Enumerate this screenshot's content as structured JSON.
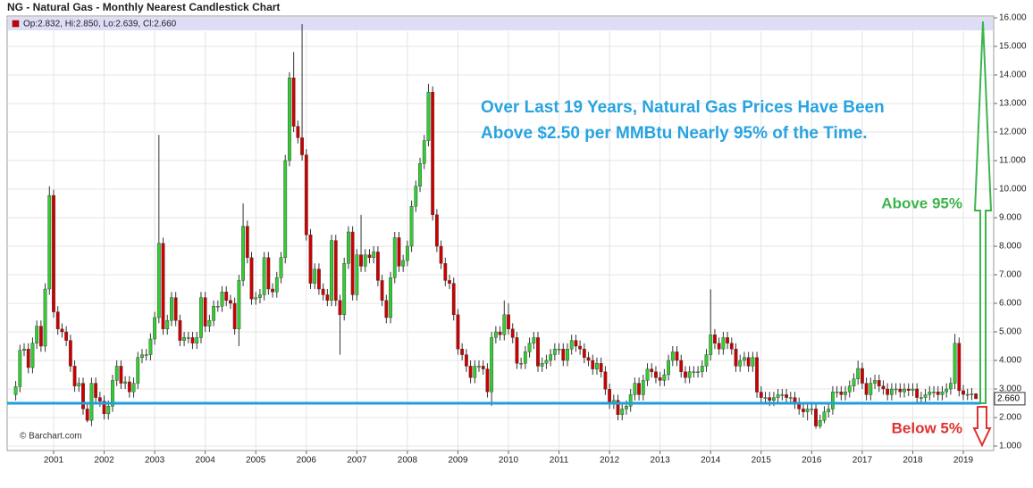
{
  "chart_data": {
    "type": "candlestick",
    "title": "NG - Natural Gas - Monthly Nearest Candlestick Chart",
    "legend_text": "Op:2.832, Hi:2.850, Lo:2.639, Cl:2.660",
    "annotation_lines": [
      "Over Last 19 Years, Natural Gas Prices Have Been",
      "Above $2.50 per MMBtu Nearly 95% of the Time."
    ],
    "above_label": "Above 95%",
    "below_label": "Below 5%",
    "credit": "© Barchart.com",
    "reference_line": {
      "value": 2.5,
      "color": "#1f9fdc"
    },
    "last_price": {
      "value": 2.66,
      "label": "2.660"
    },
    "up_color": "#33cc33",
    "down_color": "#cc0000",
    "grid": true,
    "ylim": [
      1,
      16
    ],
    "yticks": [
      {
        "value": 1,
        "label": "1.000"
      },
      {
        "value": 2,
        "label": "2.000"
      },
      {
        "value": 3,
        "label": "3.000"
      },
      {
        "value": 4,
        "label": "4.000"
      },
      {
        "value": 5,
        "label": "5.000"
      },
      {
        "value": 6,
        "label": "6.000"
      },
      {
        "value": 7,
        "label": "7.000"
      },
      {
        "value": 8,
        "label": "8.000"
      },
      {
        "value": 9,
        "label": "9.000"
      },
      {
        "value": 10,
        "label": "10.000"
      },
      {
        "value": 11,
        "label": "11.000"
      },
      {
        "value": 12,
        "label": "12.000"
      },
      {
        "value": 13,
        "label": "13.000"
      },
      {
        "value": 14,
        "label": "14.000"
      },
      {
        "value": 15,
        "label": "15.000"
      },
      {
        "value": 16,
        "label": "16.000"
      }
    ],
    "categories": [
      null,
      null,
      null,
      null,
      null,
      null,
      null,
      null,
      null,
      "2001",
      null,
      null,
      null,
      null,
      null,
      null,
      null,
      null,
      null,
      null,
      null,
      "2002",
      null,
      null,
      null,
      null,
      null,
      null,
      null,
      null,
      null,
      null,
      null,
      "2003",
      null,
      null,
      null,
      null,
      null,
      null,
      null,
      null,
      null,
      null,
      null,
      "2004",
      null,
      null,
      null,
      null,
      null,
      null,
      null,
      null,
      null,
      null,
      null,
      "2005",
      null,
      null,
      null,
      null,
      null,
      null,
      null,
      null,
      null,
      null,
      null,
      "2006",
      null,
      null,
      null,
      null,
      null,
      null,
      null,
      null,
      null,
      null,
      null,
      "2007",
      null,
      null,
      null,
      null,
      null,
      null,
      null,
      null,
      null,
      null,
      null,
      "2008",
      null,
      null,
      null,
      null,
      null,
      null,
      null,
      null,
      null,
      null,
      null,
      "2009",
      null,
      null,
      null,
      null,
      null,
      null,
      null,
      null,
      null,
      null,
      null,
      "2010",
      null,
      null,
      null,
      null,
      null,
      null,
      null,
      null,
      null,
      null,
      null,
      "2011",
      null,
      null,
      null,
      null,
      null,
      null,
      null,
      null,
      null,
      null,
      null,
      "2012",
      null,
      null,
      null,
      null,
      null,
      null,
      null,
      null,
      null,
      null,
      null,
      "2013",
      null,
      null,
      null,
      null,
      null,
      null,
      null,
      null,
      null,
      null,
      null,
      "2014",
      null,
      null,
      null,
      null,
      null,
      null,
      null,
      null,
      null,
      null,
      null,
      "2015",
      null,
      null,
      null,
      null,
      null,
      null,
      null,
      null,
      null,
      null,
      null,
      "2016",
      null,
      null,
      null,
      null,
      null,
      null,
      null,
      null,
      null,
      null,
      null,
      "2017",
      null,
      null,
      null,
      null,
      null,
      null,
      null,
      null,
      null,
      null,
      null,
      "2018",
      null,
      null,
      null,
      null,
      null,
      null,
      null,
      null,
      null,
      null,
      null,
      "2019",
      null,
      null,
      null
    ],
    "open": [
      2.8,
      3.08,
      4.35,
      4.4,
      3.75,
      4.6,
      5.2,
      4.5,
      6.5,
      9.78,
      5.7,
      5.1,
      5.0,
      4.7,
      3.8,
      3.1,
      3.2,
      2.3,
      1.9,
      3.2,
      2.7,
      2.57,
      2.13,
      2.4,
      3.3,
      3.8,
      3.2,
      3.25,
      2.9,
      3.2,
      4.1,
      4.2,
      4.2,
      4.75,
      5.5,
      8.1,
      5.1,
      5.4,
      6.2,
      5.4,
      4.7,
      4.8,
      4.8,
      4.6,
      4.8,
      6.2,
      5.2,
      5.4,
      5.9,
      5.9,
      6.4,
      6.1,
      6.0,
      5.1,
      6.8,
      8.7,
      7.6,
      6.15,
      6.2,
      6.3,
      7.6,
      6.5,
      6.4,
      6.9,
      7.6,
      11.0,
      13.9,
      12.2,
      11.8,
      11.2,
      8.4,
      6.7,
      7.2,
      6.5,
      6.3,
      6.1,
      8.2,
      6.1,
      5.6,
      7.4,
      8.5,
      6.3,
      7.7,
      7.3,
      7.7,
      7.6,
      7.8,
      6.8,
      6.1,
      5.5,
      6.9,
      8.3,
      7.3,
      7.5,
      8.0,
      9.4,
      10.1,
      10.9,
      11.7,
      13.4,
      9.1,
      8.0,
      7.4,
      6.8,
      6.7,
      5.6,
      4.4,
      4.2,
      3.8,
      3.4,
      3.8,
      3.8,
      3.7,
      2.9,
      4.8,
      5.0,
      4.9,
      5.6,
      5.1,
      4.8,
      3.9,
      3.9,
      4.3,
      4.6,
      4.8,
      3.8,
      3.9,
      4.0,
      4.2,
      4.4,
      4.4,
      4.0,
      4.4,
      4.7,
      4.5,
      4.4,
      4.1,
      4.0,
      3.7,
      3.9,
      3.6,
      2.99,
      2.5,
      2.6,
      2.1,
      2.3,
      2.4,
      2.8,
      3.2,
      2.8,
      3.3,
      3.7,
      3.6,
      3.4,
      3.3,
      3.5,
      4.0,
      4.3,
      4.0,
      3.6,
      3.4,
      3.6,
      3.6,
      3.6,
      3.8,
      4.2,
      4.9,
      4.6,
      4.4,
      4.8,
      4.6,
      4.4,
      3.8,
      4.0,
      4.1,
      3.8,
      4.1,
      2.89,
      2.7,
      2.7,
      2.6,
      2.7,
      2.8,
      2.8,
      2.7,
      2.7,
      2.5,
      2.3,
      2.2,
      2.3,
      2.3,
      1.7,
      1.9,
      2.2,
      2.3,
      2.9,
      2.9,
      2.8,
      2.9,
      3.1,
      3.35,
      3.72,
      3.2,
      2.8,
      3.2,
      3.3,
      3.1,
      3.0,
      2.8,
      3.0,
      3.0,
      2.9,
      3.0,
      2.95,
      3.0,
      2.7,
      2.7,
      2.8,
      2.9,
      2.9,
      2.8,
      2.9,
      3.0,
      3.2,
      4.6,
      2.94,
      2.81,
      2.81,
      2.832
    ],
    "high": [
      3.28,
      4.55,
      4.6,
      4.6,
      4.8,
      5.4,
      5.4,
      6.7,
      10.1,
      9.98,
      5.9,
      5.3,
      5.2,
      4.9,
      4.0,
      3.4,
      3.4,
      2.5,
      3.4,
      3.4,
      2.9,
      2.77,
      2.6,
      3.5,
      4.0,
      4.0,
      3.45,
      3.45,
      3.4,
      4.3,
      4.4,
      4.4,
      4.95,
      5.7,
      11.9,
      8.3,
      5.6,
      6.4,
      6.4,
      5.6,
      5.0,
      5.0,
      5.0,
      5.0,
      6.4,
      6.4,
      5.6,
      6.1,
      6.1,
      6.6,
      6.6,
      6.3,
      6.2,
      7.0,
      9.5,
      8.9,
      7.8,
      6.4,
      6.5,
      7.8,
      7.8,
      6.7,
      7.1,
      7.8,
      11.2,
      14.1,
      14.8,
      12.4,
      15.78,
      11.4,
      8.6,
      7.4,
      7.4,
      6.7,
      6.5,
      8.4,
      8.4,
      6.3,
      7.6,
      8.7,
      8.7,
      7.9,
      9.1,
      7.9,
      7.9,
      8.0,
      8.0,
      7.0,
      6.3,
      7.1,
      8.5,
      8.5,
      7.7,
      8.2,
      9.6,
      10.3,
      11.1,
      11.9,
      13.69,
      13.6,
      9.3,
      8.2,
      7.6,
      7.0,
      6.9,
      5.8,
      4.6,
      4.4,
      4.0,
      4.0,
      4.0,
      4.0,
      3.9,
      5.0,
      5.2,
      5.2,
      6.1,
      6.0,
      5.3,
      5.0,
      4.1,
      4.5,
      4.8,
      5.0,
      5.0,
      4.1,
      4.2,
      4.4,
      4.6,
      4.6,
      4.6,
      4.6,
      4.9,
      4.9,
      4.7,
      4.6,
      4.3,
      4.2,
      4.1,
      4.1,
      3.8,
      3.19,
      2.8,
      2.8,
      2.5,
      2.6,
      3.0,
      3.4,
      3.4,
      3.5,
      3.9,
      3.9,
      3.8,
      3.6,
      3.7,
      4.2,
      4.5,
      4.5,
      4.2,
      3.8,
      3.8,
      3.8,
      3.8,
      4.0,
      4.4,
      6.49,
      5.1,
      4.8,
      5.0,
      5.0,
      4.8,
      4.6,
      4.2,
      4.3,
      4.3,
      4.3,
      4.3,
      3.09,
      2.9,
      2.9,
      2.9,
      3.0,
      3.0,
      3.0,
      2.9,
      2.9,
      2.7,
      2.5,
      2.5,
      2.5,
      2.5,
      2.1,
      2.4,
      2.5,
      3.1,
      3.1,
      3.1,
      3.1,
      3.3,
      3.55,
      3.99,
      3.92,
      3.4,
      3.4,
      3.5,
      3.5,
      3.3,
      3.2,
      3.2,
      3.2,
      3.2,
      3.2,
      3.2,
      3.2,
      3.2,
      2.9,
      3.0,
      3.1,
      3.1,
      3.1,
      3.1,
      3.2,
      3.4,
      4.93,
      4.8,
      3.14,
      3.01,
      3.03,
      2.85
    ],
    "low": [
      2.6,
      2.88,
      4.15,
      3.55,
      3.55,
      4.4,
      4.3,
      4.3,
      6.3,
      5.5,
      4.9,
      4.8,
      4.5,
      3.6,
      2.9,
      2.9,
      2.1,
      1.83,
      1.7,
      2.5,
      2.37,
      1.93,
      1.93,
      2.2,
      3.1,
      3.0,
      3.0,
      2.7,
      2.7,
      3.0,
      3.9,
      4.0,
      4.0,
      4.55,
      5.3,
      4.9,
      4.9,
      5.2,
      5.2,
      4.5,
      4.5,
      4.6,
      4.4,
      4.4,
      4.6,
      5.0,
      5.0,
      5.2,
      5.7,
      5.7,
      5.9,
      5.8,
      4.9,
      4.5,
      6.6,
      7.4,
      5.95,
      5.95,
      6.0,
      6.1,
      6.3,
      6.2,
      6.2,
      6.7,
      7.4,
      10.8,
      12.0,
      11.6,
      11.0,
      8.2,
      6.5,
      6.5,
      6.3,
      6.1,
      5.9,
      5.9,
      5.9,
      4.2,
      5.4,
      7.2,
      6.1,
      6.1,
      7.1,
      7.1,
      7.4,
      7.4,
      6.6,
      5.9,
      5.3,
      5.3,
      6.7,
      7.1,
      7.1,
      7.3,
      7.8,
      9.2,
      9.9,
      10.7,
      11.5,
      8.9,
      7.8,
      7.2,
      6.6,
      6.5,
      5.4,
      4.2,
      4.0,
      3.6,
      3.2,
      3.2,
      3.6,
      3.5,
      2.7,
      2.41,
      4.6,
      4.7,
      4.7,
      4.9,
      4.6,
      3.7,
      3.7,
      3.7,
      4.1,
      4.4,
      3.6,
      3.6,
      3.7,
      3.8,
      4.0,
      4.2,
      3.8,
      3.8,
      4.2,
      4.3,
      4.2,
      3.9,
      3.8,
      3.5,
      3.5,
      3.4,
      2.79,
      2.3,
      2.3,
      1.9,
      1.9,
      2.1,
      2.2,
      2.6,
      2.6,
      2.6,
      3.1,
      3.4,
      3.2,
      3.1,
      3.1,
      3.3,
      3.8,
      3.8,
      3.4,
      3.2,
      3.2,
      3.4,
      3.4,
      3.4,
      3.6,
      4.0,
      4.4,
      4.2,
      4.2,
      4.4,
      4.2,
      3.6,
      3.6,
      3.8,
      3.6,
      3.6,
      2.69,
      2.5,
      2.5,
      2.4,
      2.4,
      2.5,
      2.6,
      2.5,
      2.5,
      2.3,
      2.1,
      2.0,
      1.9,
      2.1,
      1.61,
      1.61,
      1.8,
      2.0,
      2.1,
      2.7,
      2.6,
      2.6,
      2.7,
      2.9,
      3.15,
      3.0,
      2.6,
      2.6,
      3.0,
      2.9,
      2.8,
      2.6,
      2.6,
      2.8,
      2.7,
      2.7,
      2.75,
      2.75,
      2.5,
      2.5,
      2.5,
      2.6,
      2.7,
      2.6,
      2.6,
      2.7,
      2.8,
      3.0,
      2.74,
      2.61,
      2.61,
      2.61,
      2.639
    ],
    "close": [
      3.08,
      4.35,
      4.4,
      3.75,
      4.6,
      5.2,
      4.5,
      6.5,
      9.78,
      5.7,
      5.1,
      5.0,
      4.7,
      3.8,
      3.1,
      3.2,
      2.3,
      1.9,
      3.2,
      2.7,
      2.57,
      2.13,
      2.4,
      3.3,
      3.8,
      3.2,
      3.25,
      2.9,
      3.2,
      4.1,
      4.2,
      4.2,
      4.75,
      5.5,
      8.1,
      5.1,
      5.4,
      6.2,
      5.4,
      4.7,
      4.8,
      4.8,
      4.6,
      4.8,
      6.2,
      5.2,
      5.4,
      5.9,
      5.9,
      6.4,
      6.1,
      6.0,
      5.1,
      6.8,
      8.7,
      7.6,
      6.15,
      6.2,
      6.3,
      7.6,
      6.5,
      6.4,
      6.9,
      7.6,
      11.0,
      13.9,
      12.2,
      11.8,
      11.2,
      8.4,
      6.7,
      7.2,
      6.5,
      6.3,
      6.1,
      8.2,
      6.1,
      5.6,
      7.4,
      8.5,
      6.3,
      7.7,
      7.3,
      7.7,
      7.6,
      7.8,
      6.8,
      6.1,
      5.5,
      6.9,
      8.3,
      7.3,
      7.5,
      8.0,
      9.4,
      10.1,
      10.9,
      11.7,
      13.4,
      9.1,
      8.0,
      7.4,
      6.8,
      6.7,
      5.6,
      4.4,
      4.2,
      3.8,
      3.4,
      3.8,
      3.8,
      3.7,
      2.9,
      4.8,
      5.0,
      4.9,
      5.6,
      5.1,
      4.8,
      3.9,
      3.9,
      4.3,
      4.6,
      4.8,
      3.8,
      3.9,
      4.0,
      4.2,
      4.4,
      4.4,
      4.0,
      4.4,
      4.7,
      4.5,
      4.4,
      4.1,
      4.0,
      3.7,
      3.9,
      3.6,
      2.99,
      2.5,
      2.6,
      2.1,
      2.3,
      2.4,
      2.8,
      3.2,
      2.8,
      3.3,
      3.7,
      3.6,
      3.4,
      3.3,
      3.5,
      4.0,
      4.3,
      4.0,
      3.6,
      3.4,
      3.6,
      3.6,
      3.6,
      3.8,
      4.2,
      4.9,
      4.6,
      4.4,
      4.8,
      4.6,
      4.4,
      3.8,
      4.0,
      4.1,
      3.8,
      4.1,
      2.89,
      2.7,
      2.7,
      2.6,
      2.7,
      2.8,
      2.8,
      2.7,
      2.7,
      2.5,
      2.3,
      2.2,
      2.3,
      2.3,
      1.7,
      1.9,
      2.2,
      2.3,
      2.9,
      2.9,
      2.8,
      2.9,
      3.1,
      3.35,
      3.72,
      3.2,
      2.8,
      3.2,
      3.3,
      3.1,
      3.0,
      2.8,
      3.0,
      3.0,
      2.9,
      3.0,
      2.95,
      3.0,
      2.7,
      2.7,
      2.8,
      2.9,
      2.9,
      2.8,
      2.9,
      3.0,
      3.2,
      4.6,
      2.94,
      2.81,
      2.81,
      2.83,
      2.66
    ]
  }
}
